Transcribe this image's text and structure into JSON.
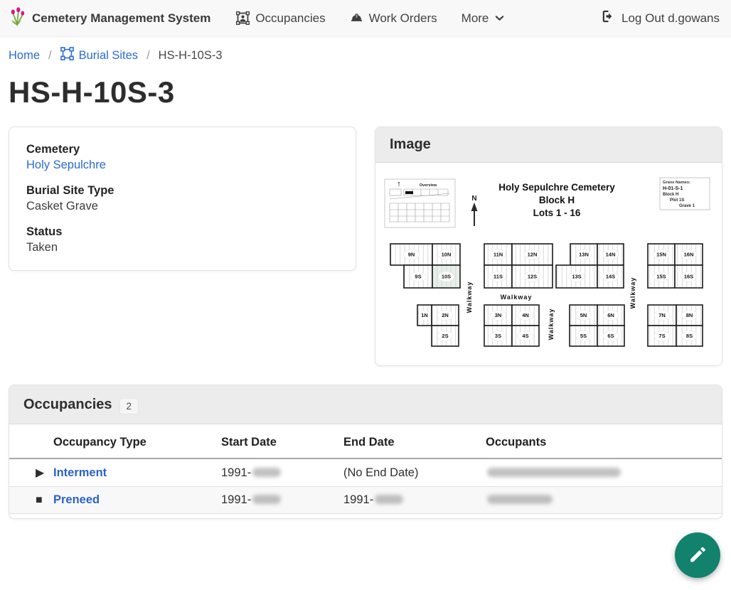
{
  "navbar": {
    "brand": "Cemetery Management System",
    "items": [
      {
        "label": "Occupancies",
        "icon": "person-frame-icon"
      },
      {
        "label": "Work Orders",
        "icon": "hard-hat-icon"
      },
      {
        "label": "More",
        "icon": "chevron-down-icon"
      }
    ],
    "logout_label": "Log Out d.gowans"
  },
  "breadcrumb": {
    "home": "Home",
    "separator": "/",
    "burial_sites": "Burial Sites",
    "current": "HS-H-10S-3"
  },
  "page_title": "HS-H-10S-3",
  "details_card": {
    "fields": [
      {
        "label": "Cemetery",
        "value": "Holy Sepulchre"
      },
      {
        "label": "Burial Site Type",
        "value": "Casket Grave"
      },
      {
        "label": "Status",
        "value": "Taken"
      }
    ]
  },
  "image_card": {
    "header": "Image",
    "map": {
      "overview_label": "Overview",
      "north_label": "N",
      "title_lines": [
        "Holy Sepulchre Cemetery",
        "Block H",
        "Lots 1 - 16"
      ],
      "grave_names": {
        "heading": "Grave Names:",
        "name": "H-01-S-1",
        "block": "Block H",
        "plot": "Plot 1S",
        "grave": "Grave 1"
      },
      "walkway_label": "Walkway",
      "highlighted_plot": "10S",
      "plots": [
        "9N",
        "10N",
        "9S",
        "10S",
        "11N",
        "12N",
        "11S",
        "12S",
        "13N",
        "14N",
        "13S",
        "14S",
        "15N",
        "16N",
        "15S",
        "16S",
        "1N",
        "2N",
        "2S",
        "3N",
        "4N",
        "3S",
        "4S",
        "5N",
        "6N",
        "5S",
        "6S",
        "7N",
        "8N",
        "7S",
        "8S"
      ]
    }
  },
  "occupancies_card": {
    "header": "Occupancies",
    "count": "2",
    "columns": [
      "Occupancy Type",
      "Start Date",
      "End Date",
      "Occupants"
    ],
    "rows": [
      {
        "icon": "play-icon",
        "icon_glyph": "▶",
        "type": "Interment",
        "start_visible": "1991-",
        "start_redacted": true,
        "end_visible": "(No End Date)",
        "end_redacted": false,
        "occupants_redacted": true
      },
      {
        "icon": "stop-square-icon",
        "icon_glyph": "■",
        "type": "Preneed",
        "start_visible": "1991-",
        "start_redacted": true,
        "end_visible": "1991-",
        "end_redacted": true,
        "occupants_redacted": true
      }
    ]
  },
  "fab": {
    "icon": "pencil-icon"
  },
  "colors": {
    "link_blue": "#2a6cd5",
    "fab_teal": "#12826d",
    "plot_highlight": "#e6efe8",
    "navbar_bg": "#f8f8f8",
    "card_header_bg": "#ececec"
  }
}
